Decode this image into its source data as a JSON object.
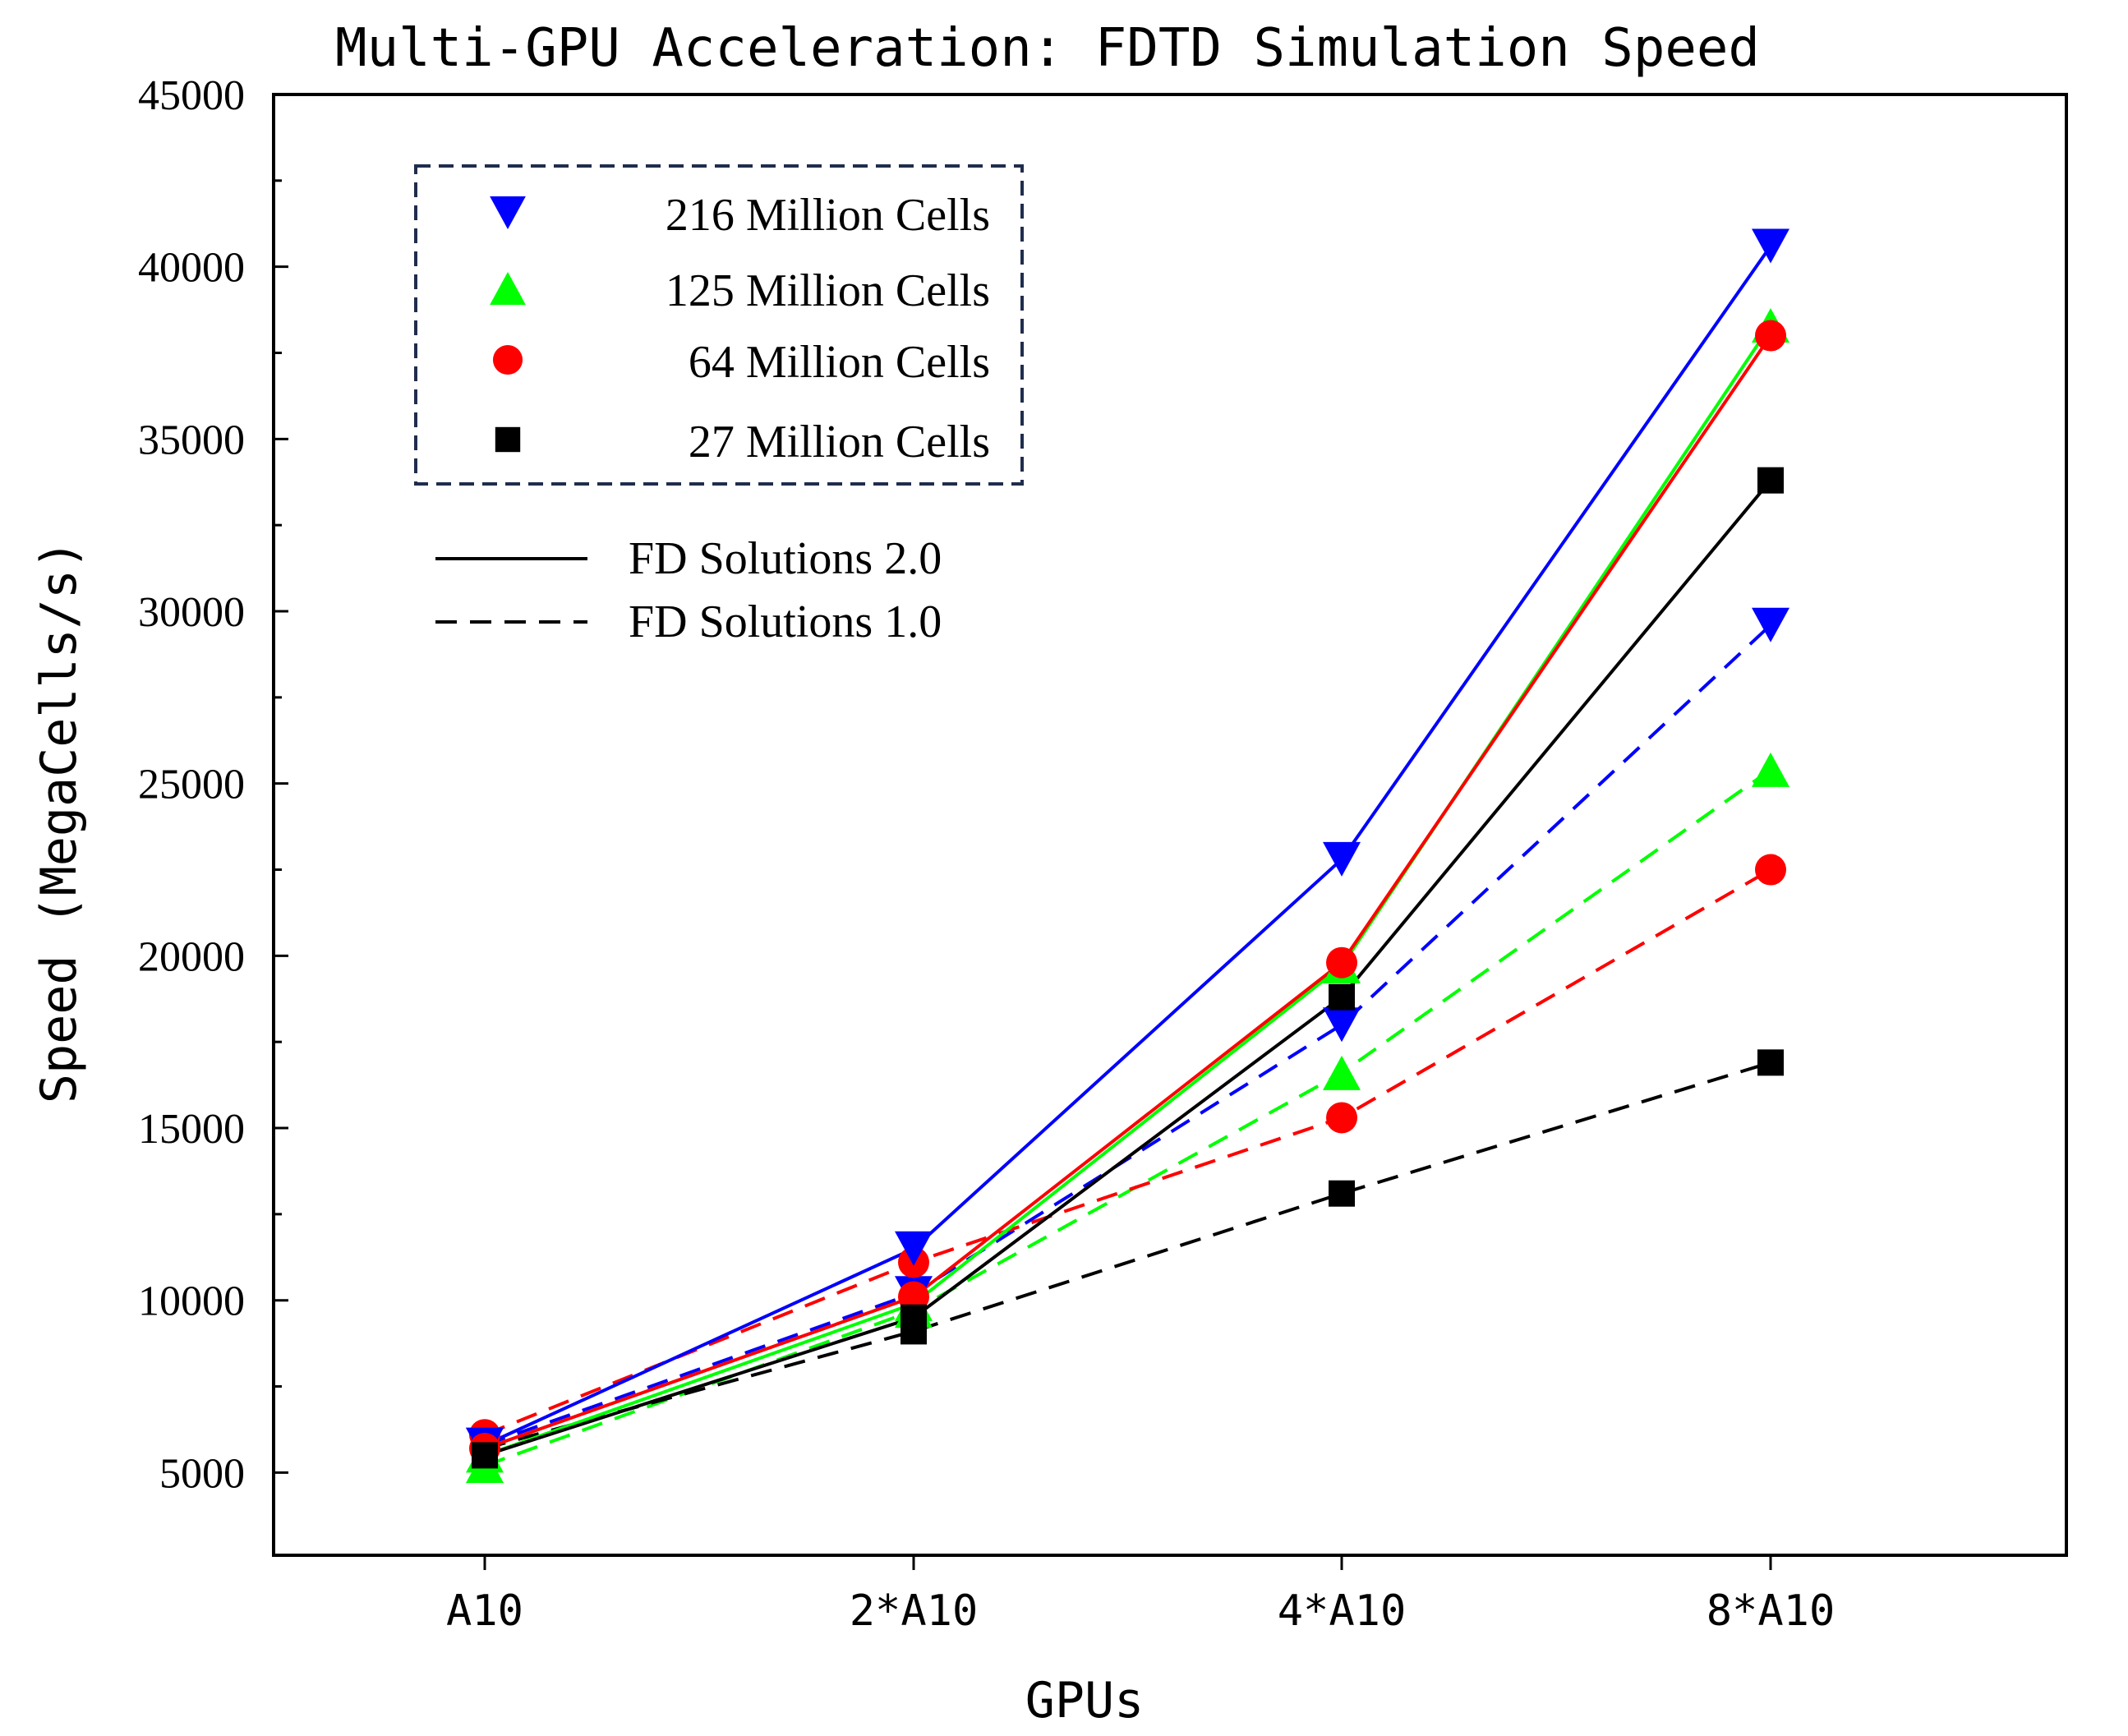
{
  "chart_data": {
    "type": "line",
    "title": "Multi-GPU Acceleration: FDTD Simulation Speed",
    "xlabel": "GPUs",
    "ylabel": "Speed (MegaCells/s)",
    "categories": [
      "A10",
      "2*A10",
      "4*A10",
      "8*A10"
    ],
    "ylim": [
      2600,
      45000
    ],
    "yticks": [
      5000,
      10000,
      15000,
      20000,
      25000,
      30000,
      35000,
      40000,
      45000
    ],
    "grid": false,
    "legend_markers": {
      "placement": "top-left",
      "entries": [
        {
          "label": "216 Million Cells",
          "marker": "triangle-down",
          "color": "#0000ff"
        },
        {
          "label": "125 Million Cells",
          "marker": "triangle-up",
          "color": "#00ff00"
        },
        {
          "label": "64 Million Cells",
          "marker": "circle",
          "color": "#ff0000"
        },
        {
          "label": "27 Million Cells",
          "marker": "square",
          "color": "#000000"
        }
      ]
    },
    "legend_lines": {
      "entries": [
        {
          "label": "FD Solutions 2.0",
          "style": "solid"
        },
        {
          "label": "FD Solutions 1.0",
          "style": "dashed"
        }
      ]
    },
    "series": [
      {
        "size": "216 Million Cells",
        "version": "FD Solutions 2.0",
        "color": "#0000ff",
        "marker": "triangle-down",
        "dash": false,
        "values": [
          5800,
          11500,
          22800,
          40600
        ]
      },
      {
        "size": "125 Million Cells",
        "version": "FD Solutions 2.0",
        "color": "#00ff00",
        "marker": "triangle-up",
        "dash": false,
        "values": [
          5500,
          9900,
          19700,
          38300
        ]
      },
      {
        "size": "64 Million Cells",
        "version": "FD Solutions 2.0",
        "color": "#ff0000",
        "marker": "circle",
        "dash": false,
        "values": [
          5700,
          10100,
          19800,
          38000
        ]
      },
      {
        "size": "27 Million Cells",
        "version": "FD Solutions 2.0",
        "color": "#000000",
        "marker": "square",
        "dash": false,
        "values": [
          5500,
          9500,
          18800,
          33800
        ]
      },
      {
        "size": "216 Million Cells",
        "version": "FD Solutions 1.0",
        "color": "#0000ff",
        "marker": "triangle-down",
        "dash": true,
        "values": [
          5800,
          10200,
          18000,
          29600
        ]
      },
      {
        "size": "125 Million Cells",
        "version": "FD Solutions 1.0",
        "color": "#00ff00",
        "marker": "triangle-up",
        "dash": true,
        "values": [
          5200,
          9700,
          16600,
          25400
        ]
      },
      {
        "size": "64 Million Cells",
        "version": "FD Solutions 1.0",
        "color": "#ff0000",
        "marker": "circle",
        "dash": true,
        "values": [
          6100,
          11100,
          15300,
          22500
        ]
      },
      {
        "size": "27 Million Cells",
        "version": "FD Solutions 1.0",
        "color": "#000000",
        "marker": "square",
        "dash": true,
        "values": [
          5700,
          9100,
          13100,
          16900
        ]
      }
    ]
  }
}
